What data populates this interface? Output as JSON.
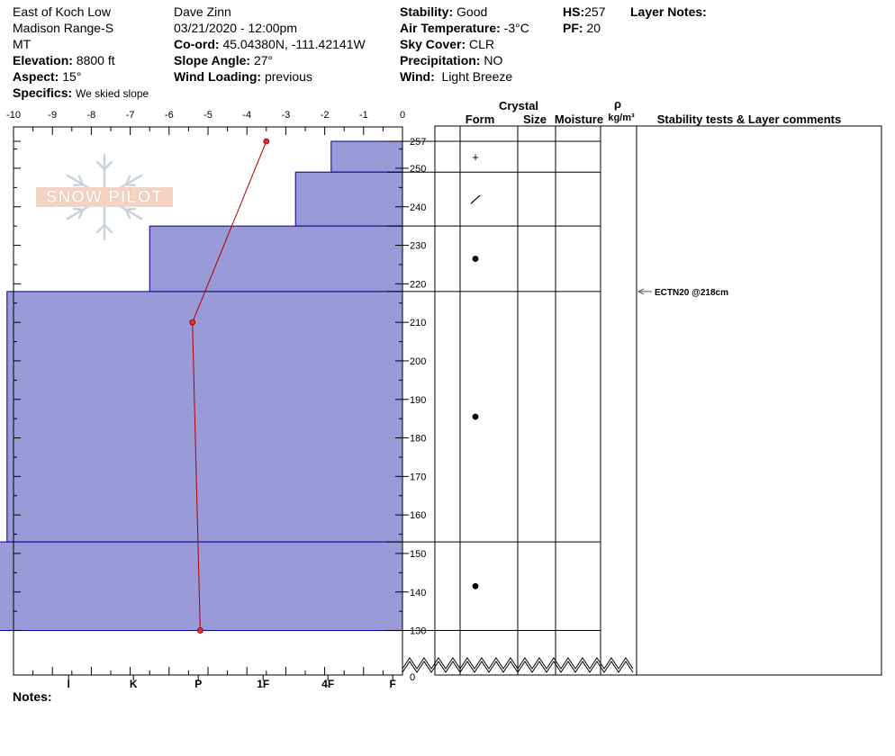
{
  "header": {
    "location_line1": "East of Koch Low",
    "location_line2": "Madison Range-S",
    "location_line3": "MT",
    "elevation_label": "Elevation:",
    "elevation_value": "8800 ft",
    "aspect_label": "Aspect:",
    "aspect_value": "15°",
    "specifics_label": "Specifics:",
    "specifics_value": "We skied slope",
    "observer": "Dave Zinn",
    "datetime": "03/21/2020 - 12:00pm",
    "coord_label": "Co-ord:",
    "coord_value": "45.04380N, -111.42141W",
    "slope_label": "Slope Angle:",
    "slope_value": "27°",
    "wind_loading_label": "Wind Loading:",
    "wind_loading_value": "previous",
    "stability_label": "Stability:",
    "stability_value": "Good",
    "air_temp_label": "Air Temperature:",
    "air_temp_value": "-3°C",
    "sky_label": "Sky Cover:",
    "sky_value": "CLR",
    "precip_label": "Precipitation:",
    "precip_value": "NO",
    "wind_label": "Wind:",
    "wind_value": "Light Breeze",
    "hs_label": "HS:",
    "hs_value": "257",
    "pf_label": "PF:",
    "pf_value": "20",
    "layer_notes_label": "Layer Notes:"
  },
  "logo_text": "SNOW PILOT",
  "table_headers": {
    "crystal": "Crystal",
    "form": "Form",
    "size": "Size",
    "moisture": "Moisture",
    "rho": "ρ",
    "density_unit": "kg/m³",
    "stability": "Stability tests & Layer comments"
  },
  "notes_label": "Notes:",
  "colors": {
    "hardness_fill": "#9a9ad8",
    "hardness_stroke": "#00008b",
    "temp_line": "#b00000"
  },
  "chart_data": {
    "type": "snow_profile",
    "temp_axis": {
      "range": [
        -10,
        0
      ],
      "ticks": [
        "-10",
        "-9",
        "-8",
        "-7",
        "-6",
        "-5",
        "-4",
        "-3",
        "-2",
        "-1",
        "0"
      ]
    },
    "height_axis": {
      "range": [
        0,
        257
      ],
      "ticks": [
        "257",
        "250",
        "240",
        "230",
        "220",
        "210",
        "200",
        "190",
        "180",
        "170",
        "160",
        "150",
        "140",
        "130"
      ],
      "bottom_tick": "0",
      "break_between": [
        0,
        130
      ]
    },
    "hardness_axis": {
      "ticks": [
        "I",
        "K",
        "P",
        "1F",
        "4F",
        "F"
      ]
    },
    "layers": [
      {
        "top": 257,
        "bottom": 249,
        "hardness": 1.1,
        "form": "+"
      },
      {
        "top": 249,
        "bottom": 235,
        "hardness": 1.65,
        "form": "/"
      },
      {
        "top": 235,
        "bottom": 218,
        "hardness": 3.9,
        "form": "•"
      },
      {
        "top": 218,
        "bottom": 153,
        "hardness": 6.1,
        "form": "•"
      },
      {
        "top": 153,
        "bottom": 130,
        "hardness": 6.65,
        "form": "•"
      }
    ],
    "temperature": [
      {
        "depth": 257,
        "temp": -3.5
      },
      {
        "depth": 210,
        "temp": -5.4
      },
      {
        "depth": 130,
        "temp": -5.2
      }
    ],
    "stability_tests": [
      {
        "depth": 218,
        "label": "ECTN20 @218cm"
      }
    ]
  }
}
